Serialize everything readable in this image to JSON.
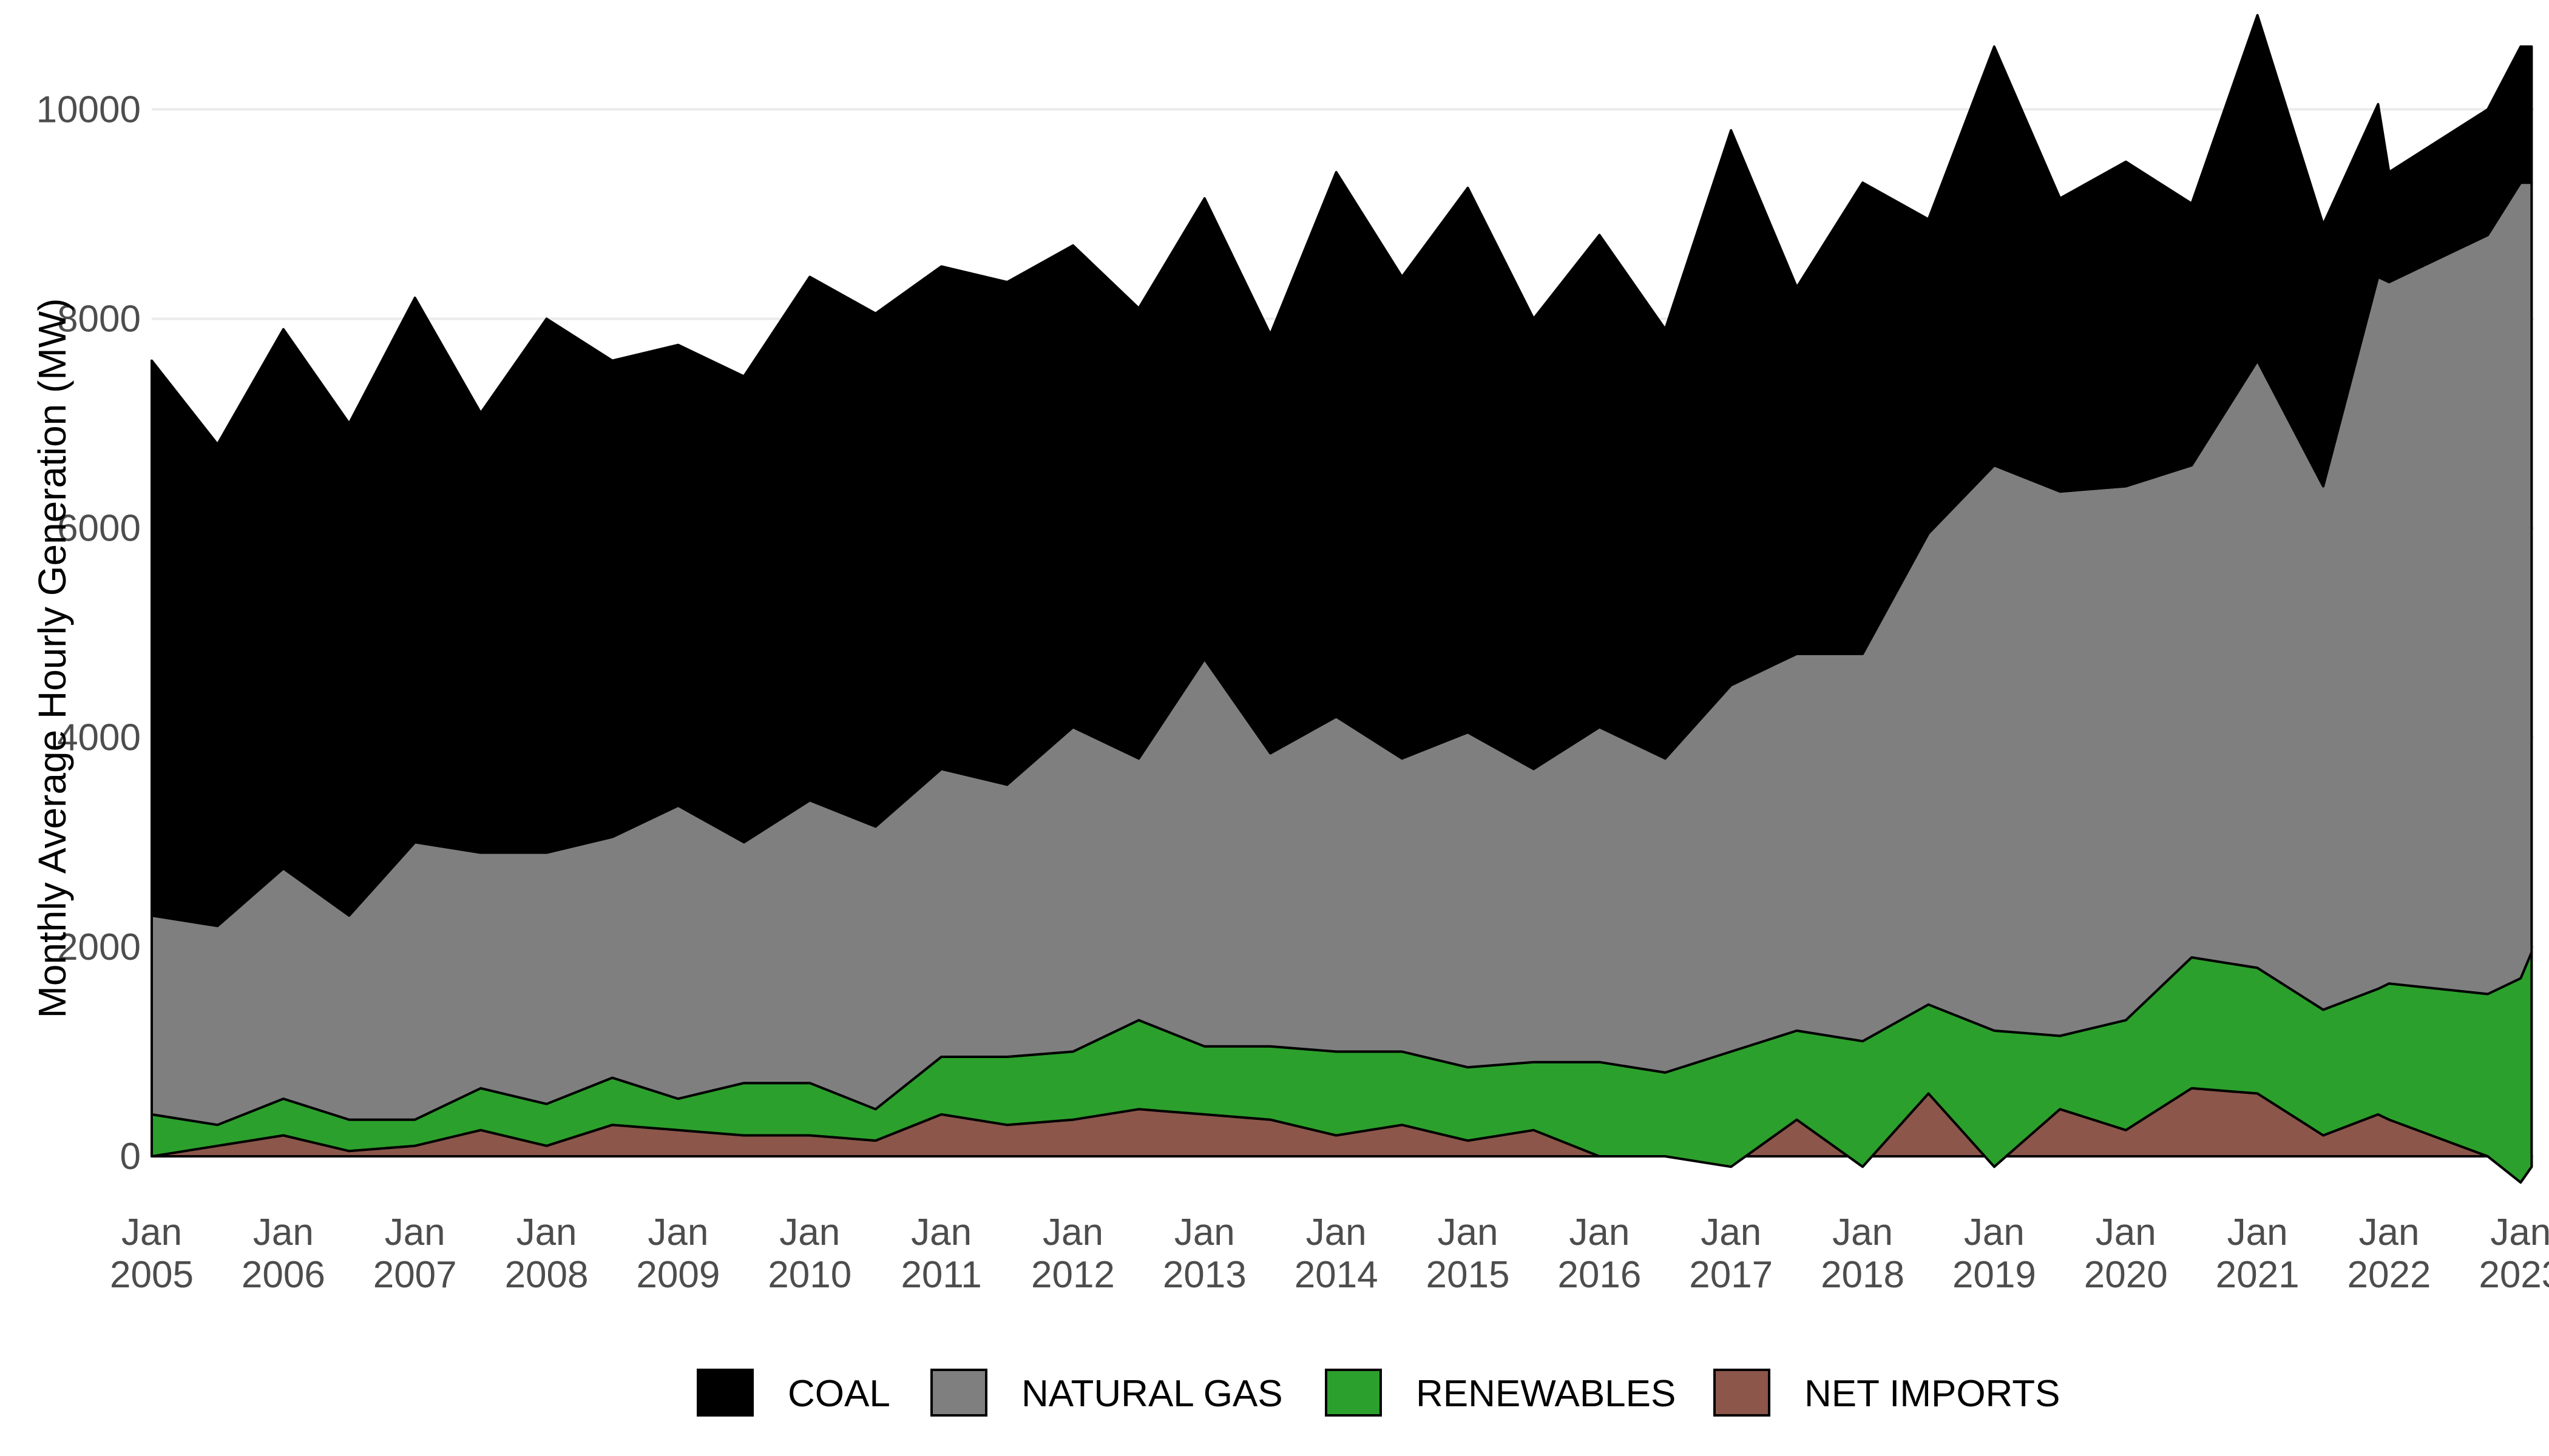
{
  "chart_data": {
    "type": "area",
    "stacked": true,
    "title": "",
    "xlabel": "",
    "ylabel": "Monthly Average Hourly Generation (MW)",
    "ylim": [
      -400,
      10900
    ],
    "yticks": [
      0,
      2000,
      4000,
      6000,
      8000,
      10000
    ],
    "xticks": [
      {
        "year": 2005,
        "line1": "Jan",
        "line2": "2005"
      },
      {
        "year": 2006,
        "line1": "Jan",
        "line2": "2006"
      },
      {
        "year": 2007,
        "line1": "Jan",
        "line2": "2007"
      },
      {
        "year": 2008,
        "line1": "Jan",
        "line2": "2008"
      },
      {
        "year": 2009,
        "line1": "Jan",
        "line2": "2009"
      },
      {
        "year": 2010,
        "line1": "Jan",
        "line2": "2010"
      },
      {
        "year": 2011,
        "line1": "Jan",
        "line2": "2011"
      },
      {
        "year": 2012,
        "line1": "Jan",
        "line2": "2012"
      },
      {
        "year": 2013,
        "line1": "Jan",
        "line2": "2013"
      },
      {
        "year": 2014,
        "line1": "Jan",
        "line2": "2014"
      },
      {
        "year": 2015,
        "line1": "Jan",
        "line2": "2015"
      },
      {
        "year": 2016,
        "line1": "Jan",
        "line2": "2016"
      },
      {
        "year": 2017,
        "line1": "Jan",
        "line2": "2017"
      },
      {
        "year": 2018,
        "line1": "Jan",
        "line2": "2018"
      },
      {
        "year": 2019,
        "line1": "Jan",
        "line2": "2019"
      },
      {
        "year": 2020,
        "line1": "Jan",
        "line2": "2020"
      },
      {
        "year": 2021,
        "line1": "Jan",
        "line2": "2021"
      },
      {
        "year": 2022,
        "line1": "Jan",
        "line2": "2022"
      },
      {
        "year": 2023,
        "line1": "Jan",
        "line2": "2023"
      }
    ],
    "grid": true,
    "legend_position": "bottom",
    "x": [
      "2005-01",
      "2005-07",
      "2006-01",
      "2006-07",
      "2007-01",
      "2007-07",
      "2008-01",
      "2008-07",
      "2009-01",
      "2009-07",
      "2010-01",
      "2010-07",
      "2011-01",
      "2011-07",
      "2012-01",
      "2012-07",
      "2013-01",
      "2013-07",
      "2014-01",
      "2014-07",
      "2015-01",
      "2015-07",
      "2016-01",
      "2016-07",
      "2017-01",
      "2017-07",
      "2018-01",
      "2018-07",
      "2019-01",
      "2019-07",
      "2020-01",
      "2020-07",
      "2021-01",
      "2021-07",
      "2021-12",
      "2022-01",
      "2022-10",
      "2023-01",
      "2023-02"
    ],
    "series": [
      {
        "name": "NET IMPORTS",
        "color": "#8c564b",
        "values": [
          0,
          100,
          200,
          50,
          100,
          250,
          100,
          300,
          250,
          200,
          200,
          150,
          400,
          300,
          350,
          450,
          400,
          350,
          200,
          300,
          150,
          250,
          0,
          0,
          -100,
          350,
          -100,
          600,
          -100,
          450,
          250,
          650,
          600,
          200,
          400,
          350,
          0,
          -250,
          -100
        ]
      },
      {
        "name": "RENEWABLES",
        "color": "#2ca02c",
        "values": [
          400,
          200,
          350,
          300,
          250,
          400,
          400,
          450,
          300,
          500,
          500,
          300,
          550,
          650,
          650,
          850,
          650,
          700,
          800,
          700,
          700,
          650,
          900,
          800,
          1100,
          850,
          1200,
          850,
          1300,
          700,
          1050,
          1250,
          1200,
          1200,
          1200,
          1300,
          1550,
          1950,
          2050
        ]
      },
      {
        "name": "NATURAL GAS",
        "color": "#7f7f7f",
        "values": [
          1900,
          1900,
          2200,
          1950,
          2650,
          2250,
          2400,
          2300,
          2800,
          2300,
          2700,
          2700,
          2750,
          2600,
          3100,
          2500,
          3700,
          2800,
          3200,
          2800,
          3200,
          2800,
          3200,
          3000,
          3500,
          3600,
          3700,
          4500,
          5400,
          5200,
          5100,
          4700,
          5800,
          5000,
          6800,
          6700,
          7250,
          7600,
          7350
        ]
      },
      {
        "name": "COAL",
        "color": "#000000",
        "values": [
          5300,
          4600,
          5150,
          4700,
          5200,
          4200,
          5100,
          4550,
          4400,
          4450,
          5000,
          4900,
          4800,
          4800,
          4600,
          4300,
          4400,
          4000,
          5200,
          4600,
          5200,
          4300,
          4700,
          4100,
          5300,
          3500,
          4500,
          3000,
          4000,
          2800,
          3100,
          2500,
          3300,
          2500,
          1650,
          1050,
          1200,
          1300,
          1300
        ]
      }
    ]
  }
}
